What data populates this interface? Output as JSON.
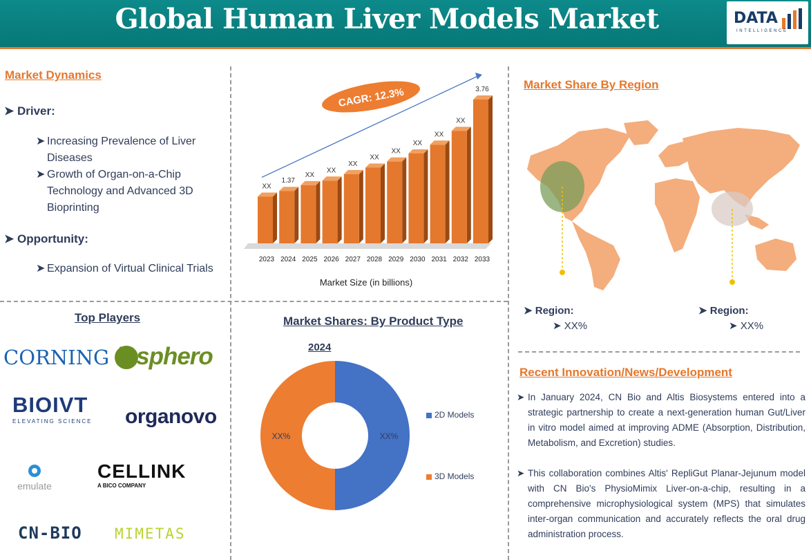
{
  "header": {
    "title": "Global Human Liver Models Market",
    "logo_text": "DATA",
    "logo_sub": "INTELLIGENCE"
  },
  "market_dynamics": {
    "heading": "Market Dynamics",
    "driver_label": "Driver:",
    "drivers": [
      [
        "Increasing Prevalence of Liver",
        "Diseases"
      ],
      [
        "Growth of Organ-on-a-Chip",
        "Technology and Advanced 3D",
        "Bioprinting"
      ]
    ],
    "opportunity_label": "Opportunity:",
    "opportunities": [
      "Expansion of Virtual Clinical Trials"
    ]
  },
  "chart_data": {
    "type": "bar",
    "categories": [
      "2023",
      "2024",
      "2025",
      "2026",
      "2027",
      "2028",
      "2029",
      "2030",
      "2031",
      "2032",
      "2033"
    ],
    "values": [
      1.22,
      1.37,
      1.52,
      1.64,
      1.81,
      1.98,
      2.14,
      2.35,
      2.58,
      2.94,
      3.76
    ],
    "data_labels": [
      "XX",
      "1.37",
      "XX",
      "XX",
      "XX",
      "XX",
      "XX",
      "XX",
      "XX",
      "XX",
      "3.76"
    ],
    "cagr_label": "CAGR: 12.3%",
    "xlabel": "Market Size (in billions)",
    "color": "#e4782d"
  },
  "top_players": {
    "heading": "Top Players",
    "logos": [
      "CORNING",
      "insphero",
      "BIOIVT",
      "ELEVATING SCIENCE",
      "organovo",
      "emulate",
      "CELLINK",
      "A BICO COMPANY",
      "CN-BIO",
      "MIMETAS"
    ]
  },
  "product_type": {
    "heading": "Market Shares: By Product Type",
    "year": "2024",
    "segments": [
      {
        "name": "2D Models",
        "label": "XX%",
        "share": 0.5,
        "color": "#4472c4"
      },
      {
        "name": "3D Models",
        "label": "XX%",
        "share": 0.5,
        "color": "#ed7d31"
      }
    ]
  },
  "region": {
    "heading": "Market Share By Region",
    "items": [
      {
        "label": "Region:",
        "value": "XX%"
      },
      {
        "label": "Region:",
        "value": "XX%"
      }
    ]
  },
  "news": {
    "heading": "Recent Innovation/News/Development",
    "paragraphs": [
      "In January 2024, CN Bio and Altis Biosystems entered into a strategic partnership to create a next-generation human Gut/Liver in vitro model aimed at improving ADME (Absorption, Distribution, Metabolism, and Excretion) studies.",
      "This collaboration combines Altis' RepliGut Planar-Jejunum model with CN Bio's PhysioMimix Liver-on-a-chip, resulting in a comprehensive microphysiological system (MPS) that simulates inter-organ communication and accurately reflects the oral drug administration process."
    ]
  }
}
